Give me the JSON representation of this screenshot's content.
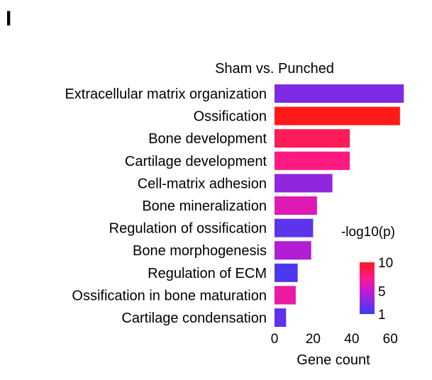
{
  "panel_label": "I",
  "chart_data": {
    "type": "bar",
    "orientation": "horizontal",
    "title": "Sham vs. Punched",
    "xlabel": "Gene count",
    "ylabel": "",
    "xlim": [
      0,
      68
    ],
    "xticks": [
      0,
      20,
      40,
      60
    ],
    "xtick_labels": [
      "0",
      "20",
      "40",
      "60"
    ],
    "categories": [
      "Extracellular matrix organization",
      "Ossification",
      "Bone development",
      "Cartilage development",
      "Cell-matrix adhesion",
      "Bone mineralization",
      "Regulation of ossification",
      "Bone morphogenesis",
      "Regulation of ECM",
      "Ossification in bone maturation",
      "Cartilage condensation"
    ],
    "values": [
      67,
      65,
      39,
      39,
      30,
      22,
      20,
      19,
      12,
      11,
      6
    ],
    "color_values": [
      3,
      10,
      8.5,
      7.5,
      3.5,
      6,
      2,
      4.5,
      1.5,
      6.5,
      2
    ],
    "colorbar": {
      "title": "-log10(p)",
      "min": 1,
      "max": 10,
      "ticks": [
        10,
        5,
        1
      ],
      "tick_labels": [
        "10",
        "5",
        "1"
      ],
      "colors": [
        "#3b3bf5",
        "#ff1a1a"
      ]
    },
    "grid": false,
    "legend": "right"
  }
}
